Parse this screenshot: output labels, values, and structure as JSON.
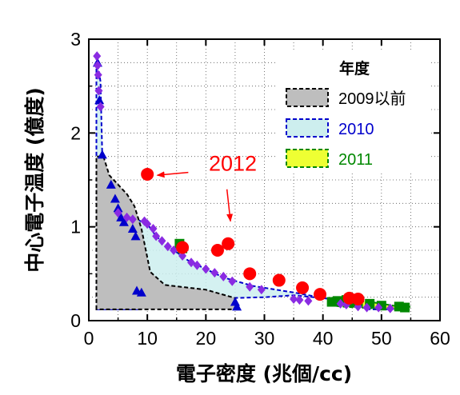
{
  "chart_data": {
    "type": "scatter",
    "title": "",
    "xlabel": "電子密度 (兆個/cc)",
    "ylabel": "中心電子温度 (億度)",
    "xlim": [
      0,
      60
    ],
    "ylim": [
      0,
      3
    ],
    "x_ticks": [
      "0",
      "10",
      "20",
      "30",
      "40",
      "50",
      "60"
    ],
    "y_ticks": [
      "0",
      "1",
      "2",
      "3"
    ],
    "grid": "dotted",
    "legend": {
      "title": "年度",
      "position": "top-right"
    },
    "colors": {
      "before2009_fill": "#bebebe",
      "before2009_edge": "#000000",
      "y2010_fill": "#cdeeee",
      "y2010_edge": "#0000cc",
      "y2011_fill": "#eeff33",
      "y2011_edge": "#008800",
      "y2012": "#ff0000",
      "diamond": "#8a2be2",
      "triangle": "#0000cc",
      "square": "#008800"
    },
    "regions": [
      {
        "name": "2009以前",
        "polygon": [
          [
            1.3,
            0.12
          ],
          [
            1.3,
            1.75
          ],
          [
            2.5,
            1.75
          ],
          [
            3.5,
            1.55
          ],
          [
            5,
            1.45
          ],
          [
            6.5,
            1.35
          ],
          [
            7.8,
            1.22
          ],
          [
            9,
            0.98
          ],
          [
            10.5,
            0.52
          ],
          [
            13,
            0.38
          ],
          [
            20,
            0.33
          ],
          [
            25,
            0.24
          ],
          [
            25.5,
            0.12
          ]
        ]
      },
      {
        "name": "2010",
        "polygon": [
          [
            1.3,
            0.12
          ],
          [
            1.3,
            2.82
          ],
          [
            2,
            2.55
          ],
          [
            2.3,
            1.77
          ],
          [
            3.5,
            1.5
          ],
          [
            5,
            1.32
          ],
          [
            6.5,
            1.15
          ],
          [
            8.5,
            1.07
          ],
          [
            10,
            1.03
          ],
          [
            11.5,
            0.9
          ],
          [
            13,
            0.82
          ],
          [
            17,
            0.64
          ],
          [
            20,
            0.55
          ],
          [
            23,
            0.46
          ],
          [
            28,
            0.37
          ],
          [
            35,
            0.3
          ],
          [
            42,
            0.22
          ],
          [
            48,
            0.16
          ],
          [
            52,
            0.12
          ],
          [
            48,
            0.12
          ],
          [
            45,
            0.2
          ],
          [
            40,
            0.24
          ],
          [
            35,
            0.27
          ],
          [
            30,
            0.25
          ],
          [
            24,
            0.24
          ],
          [
            15,
            0.3
          ],
          [
            8.5,
            0.3
          ],
          [
            8.3,
            0.12
          ]
        ]
      },
      {
        "name": "2011",
        "polygon": [
          [
            41,
            0.17
          ],
          [
            44,
            0.22
          ],
          [
            48,
            0.2
          ],
          [
            52,
            0.16
          ],
          [
            55,
            0.15
          ],
          [
            52,
            0.12
          ],
          [
            46,
            0.14
          ],
          [
            43,
            0.15
          ]
        ]
      }
    ],
    "series": [
      {
        "name": "2009以前",
        "marker": "triangle",
        "points": [
          [
            1.5,
            2.75
          ],
          [
            1.8,
            2.35
          ],
          [
            2.3,
            1.77
          ],
          [
            3.8,
            1.45
          ],
          [
            4.5,
            1.3
          ],
          [
            5,
            1.2
          ],
          [
            5.5,
            1.1
          ],
          [
            6,
            1.05
          ],
          [
            7.5,
            0.98
          ],
          [
            8,
            0.9
          ],
          [
            8.2,
            0.32
          ],
          [
            9,
            0.3
          ],
          [
            25,
            0.2
          ],
          [
            25.3,
            0.15
          ]
        ]
      },
      {
        "name": "2010",
        "marker": "diamond",
        "points": [
          [
            1.4,
            2.82
          ],
          [
            1.5,
            2.72
          ],
          [
            1.6,
            2.62
          ],
          [
            1.7,
            2.45
          ],
          [
            2,
            2.28
          ],
          [
            5,
            1.15
          ],
          [
            6.5,
            1.1
          ],
          [
            7.5,
            1.08
          ],
          [
            9.5,
            1.06
          ],
          [
            10,
            1.03
          ],
          [
            11,
            0.98
          ],
          [
            11.5,
            0.9
          ],
          [
            12.5,
            0.85
          ],
          [
            13.5,
            0.79
          ],
          [
            14.5,
            0.75
          ],
          [
            16,
            0.69
          ],
          [
            17.5,
            0.62
          ],
          [
            18.5,
            0.59
          ],
          [
            20,
            0.55
          ],
          [
            21.5,
            0.51
          ],
          [
            23,
            0.47
          ],
          [
            24.5,
            0.42
          ],
          [
            27.5,
            0.36
          ],
          [
            29.5,
            0.33
          ],
          [
            35,
            0.23
          ],
          [
            36,
            0.22
          ],
          [
            37.5,
            0.21
          ],
          [
            43,
            0.18
          ],
          [
            44,
            0.17
          ],
          [
            46,
            0.15
          ],
          [
            47.5,
            0.14
          ],
          [
            49.5,
            0.14
          ],
          [
            51.5,
            0.13
          ]
        ]
      },
      {
        "name": "2011",
        "marker": "square",
        "points": [
          [
            15.5,
            0.82
          ],
          [
            16,
            0.77
          ],
          [
            41.5,
            0.2
          ],
          [
            42.5,
            0.21
          ],
          [
            44,
            0.22
          ],
          [
            44.5,
            0.2
          ],
          [
            46,
            0.19
          ],
          [
            48,
            0.18
          ],
          [
            50,
            0.16
          ],
          [
            53,
            0.15
          ],
          [
            54,
            0.14
          ]
        ]
      },
      {
        "name": "2012",
        "marker": "circle",
        "points": [
          [
            10,
            1.56
          ],
          [
            16,
            0.78
          ],
          [
            22,
            0.75
          ],
          [
            23.8,
            0.82
          ],
          [
            27.5,
            0.5
          ],
          [
            32.5,
            0.43
          ],
          [
            36.5,
            0.35
          ],
          [
            39.5,
            0.28
          ],
          [
            44.5,
            0.24
          ],
          [
            46,
            0.23
          ]
        ]
      }
    ],
    "annotation": {
      "text": "2012",
      "anchor": [
        20.5,
        1.6
      ],
      "arrows": [
        {
          "from": [
            17,
            1.58
          ],
          "to": [
            11.7,
            1.55
          ]
        },
        {
          "from": [
            23.6,
            1.4
          ],
          "to": [
            24.2,
            1.06
          ]
        }
      ]
    }
  }
}
